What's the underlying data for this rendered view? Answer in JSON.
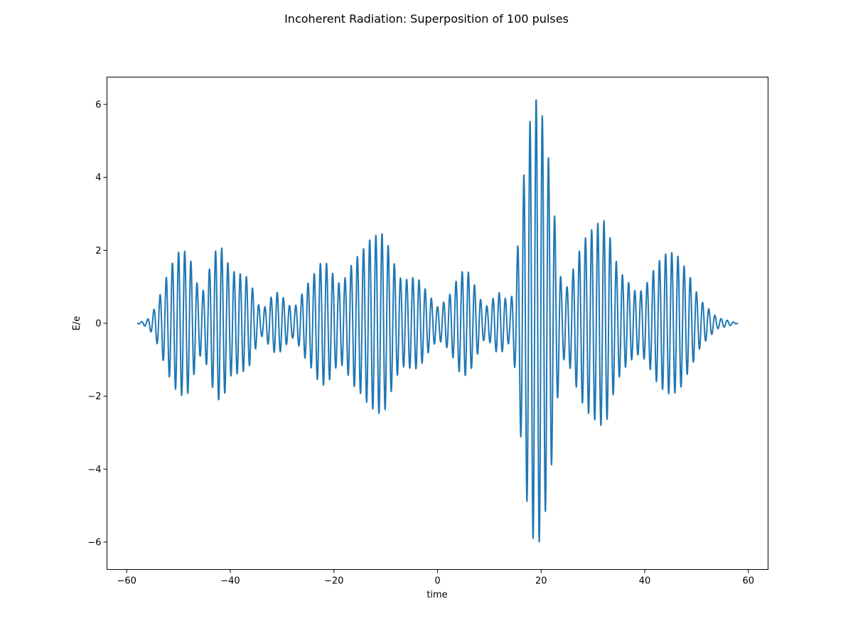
{
  "chart_data": {
    "type": "line",
    "title": "Incoherent Radiation: Superposition of 100 pulses",
    "xlabel": "time",
    "ylabel": "E/e",
    "xlim": [
      -63.8,
      63.8
    ],
    "ylim": [
      -6.75,
      6.75
    ],
    "grid": false,
    "legend": "none",
    "x_ticks": [
      {
        "value": -60,
        "label": "−60"
      },
      {
        "value": -40,
        "label": "−40"
      },
      {
        "value": -20,
        "label": "−20"
      },
      {
        "value": 0,
        "label": "0"
      },
      {
        "value": 20,
        "label": "20"
      },
      {
        "value": 40,
        "label": "40"
      },
      {
        "value": 60,
        "label": "60"
      }
    ],
    "y_ticks": [
      {
        "value": -6,
        "label": "−6"
      },
      {
        "value": -4,
        "label": "−4"
      },
      {
        "value": -2,
        "label": "−2"
      },
      {
        "value": 0,
        "label": "0"
      },
      {
        "value": 2,
        "label": "2"
      },
      {
        "value": 4,
        "label": "4"
      },
      {
        "value": 6,
        "label": "6"
      }
    ],
    "series": [
      {
        "color": "#1f77b4",
        "x_range": [
          -58,
          58
        ],
        "oscillation_period": 1.19,
        "envelope_points": [
          [
            -58,
            0.0
          ],
          [
            -57,
            0.05
          ],
          [
            -56,
            0.1
          ],
          [
            -55,
            0.3
          ],
          [
            -54,
            0.6
          ],
          [
            -53,
            1.0
          ],
          [
            -52,
            1.4
          ],
          [
            -51,
            1.7
          ],
          [
            -50,
            1.95
          ],
          [
            -49,
            2.0
          ],
          [
            -48,
            1.9
          ],
          [
            -47,
            1.4
          ],
          [
            -46,
            0.9
          ],
          [
            -45,
            0.9
          ],
          [
            -44,
            1.5
          ],
          [
            -43,
            1.95
          ],
          [
            -42,
            2.15
          ],
          [
            -41,
            1.9
          ],
          [
            -40,
            1.45
          ],
          [
            -39,
            1.4
          ],
          [
            -38,
            1.35
          ],
          [
            -37,
            1.3
          ],
          [
            -36,
            1.1
          ],
          [
            -35,
            0.65
          ],
          [
            -34,
            0.35
          ],
          [
            -33,
            0.5
          ],
          [
            -32,
            0.75
          ],
          [
            -31,
            0.85
          ],
          [
            -30,
            0.75
          ],
          [
            -29,
            0.55
          ],
          [
            -28,
            0.4
          ],
          [
            -27,
            0.55
          ],
          [
            -26,
            0.85
          ],
          [
            -25,
            1.1
          ],
          [
            -24,
            1.3
          ],
          [
            -23,
            1.6
          ],
          [
            -22,
            1.7
          ],
          [
            -21,
            1.6
          ],
          [
            -20,
            1.3
          ],
          [
            -19,
            1.1
          ],
          [
            -18,
            1.2
          ],
          [
            -17,
            1.5
          ],
          [
            -16,
            1.75
          ],
          [
            -15,
            1.9
          ],
          [
            -14,
            2.1
          ],
          [
            -13,
            2.3
          ],
          [
            -12,
            2.4
          ],
          [
            -11,
            2.5
          ],
          [
            -10,
            2.35
          ],
          [
            -9,
            1.9
          ],
          [
            -8,
            1.5
          ],
          [
            -7,
            1.2
          ],
          [
            -6,
            1.2
          ],
          [
            -5,
            1.25
          ],
          [
            -4,
            1.25
          ],
          [
            -3,
            1.1
          ],
          [
            -2,
            0.85
          ],
          [
            -1,
            0.65
          ],
          [
            0,
            0.45
          ],
          [
            1,
            0.55
          ],
          [
            2,
            0.7
          ],
          [
            3,
            0.95
          ],
          [
            4,
            1.3
          ],
          [
            5,
            1.45
          ],
          [
            6,
            1.4
          ],
          [
            7,
            1.1
          ],
          [
            8,
            0.75
          ],
          [
            9,
            0.45
          ],
          [
            10,
            0.5
          ],
          [
            11,
            0.75
          ],
          [
            12,
            0.85
          ],
          [
            13,
            0.7
          ],
          [
            14,
            0.5
          ],
          [
            15,
            1.3
          ],
          [
            16,
            3.0
          ],
          [
            17,
            4.6
          ],
          [
            18,
            5.7
          ],
          [
            19,
            6.15
          ],
          [
            20,
            5.9
          ],
          [
            21,
            5.0
          ],
          [
            22,
            3.9
          ],
          [
            23,
            2.3
          ],
          [
            24,
            1.0
          ],
          [
            25,
            1.0
          ],
          [
            26,
            1.4
          ],
          [
            27,
            1.85
          ],
          [
            28,
            2.2
          ],
          [
            29,
            2.45
          ],
          [
            30,
            2.6
          ],
          [
            31,
            2.75
          ],
          [
            32,
            2.85
          ],
          [
            33,
            2.55
          ],
          [
            34,
            1.9
          ],
          [
            35,
            1.5
          ],
          [
            36,
            1.25
          ],
          [
            37,
            1.1
          ],
          [
            38,
            0.9
          ],
          [
            39,
            0.85
          ],
          [
            40,
            1.0
          ],
          [
            41,
            1.25
          ],
          [
            42,
            1.55
          ],
          [
            43,
            1.75
          ],
          [
            44,
            1.9
          ],
          [
            45,
            1.95
          ],
          [
            46,
            1.9
          ],
          [
            47,
            1.75
          ],
          [
            48,
            1.45
          ],
          [
            49,
            1.2
          ],
          [
            50,
            0.85
          ],
          [
            51,
            0.6
          ],
          [
            52,
            0.45
          ],
          [
            53,
            0.3
          ],
          [
            54,
            0.15
          ],
          [
            55,
            0.12
          ],
          [
            56,
            0.08
          ],
          [
            57,
            0.04
          ],
          [
            58,
            0.0
          ]
        ]
      }
    ]
  }
}
